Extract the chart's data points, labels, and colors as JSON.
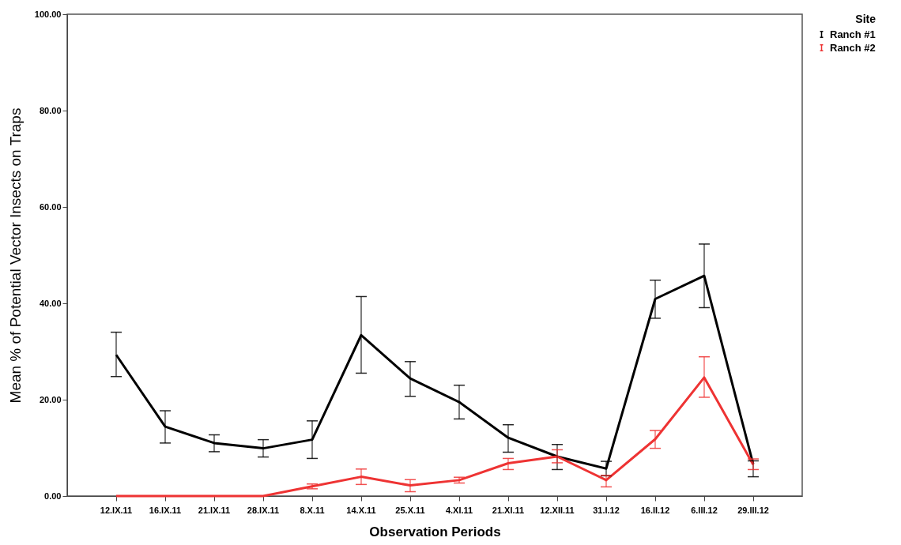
{
  "chart_data": {
    "type": "line",
    "xlabel": "Observation Periods",
    "ylabel": "Mean % of Potential Vector Insects on Traps",
    "legend_title": "Site",
    "legend": "top right",
    "grid": false,
    "marker": "none",
    "line_style": "solid",
    "categories": [
      "12.IX.11",
      "16.IX.11",
      "21.IX.11",
      "28.IX.11",
      "8.X.11",
      "14.X.11",
      "25.X.11",
      "4.XI.11",
      "21.XI.11",
      "12.XII.11",
      "31.I.12",
      "16.II.12",
      "6.III.12",
      "29.III.12"
    ],
    "ylim": [
      0,
      100
    ],
    "yticks": [
      {
        "value": 0,
        "label": "0.00"
      },
      {
        "value": 20,
        "label": "20.00"
      },
      {
        "value": 40,
        "label": "40.00"
      },
      {
        "value": 60,
        "label": "60.00"
      },
      {
        "value": 80,
        "label": "80.00"
      },
      {
        "value": 100,
        "label": "100.00"
      }
    ],
    "series": [
      {
        "name": "Ranch #1",
        "color": "#000000",
        "values": [
          29.3,
          14.4,
          11.0,
          9.9,
          11.7,
          33.4,
          24.4,
          19.5,
          12.1,
          8.2,
          5.7,
          40.9,
          45.7,
          6.6
        ],
        "errors": [
          [
            24.8,
            34.0
          ],
          [
            11.0,
            17.7
          ],
          [
            9.2,
            12.7
          ],
          [
            8.1,
            11.7
          ],
          [
            7.8,
            15.6
          ],
          [
            25.5,
            41.4
          ],
          [
            20.7,
            27.9
          ],
          [
            16.0,
            23.0
          ],
          [
            9.1,
            14.8
          ],
          [
            5.5,
            10.7
          ],
          [
            4.2,
            7.2
          ],
          [
            36.9,
            44.8
          ],
          [
            39.1,
            52.3
          ],
          [
            4.0,
            7.3
          ]
        ]
      },
      {
        "name": "Ranch #2",
        "color": "#ee3333",
        "values": [
          0,
          0,
          0,
          0,
          2.0,
          4.0,
          2.2,
          3.3,
          6.8,
          8.2,
          3.3,
          11.8,
          24.6,
          6.5
        ],
        "errors": [
          null,
          null,
          null,
          null,
          [
            1.5,
            2.5
          ],
          [
            2.4,
            5.6
          ],
          [
            0.9,
            3.4
          ],
          [
            2.7,
            3.9
          ],
          [
            5.5,
            7.8
          ],
          [
            6.9,
            9.6
          ],
          [
            1.9,
            4.3
          ],
          [
            9.9,
            13.6
          ],
          [
            20.5,
            28.9
          ],
          [
            5.5,
            7.7
          ]
        ]
      }
    ]
  }
}
